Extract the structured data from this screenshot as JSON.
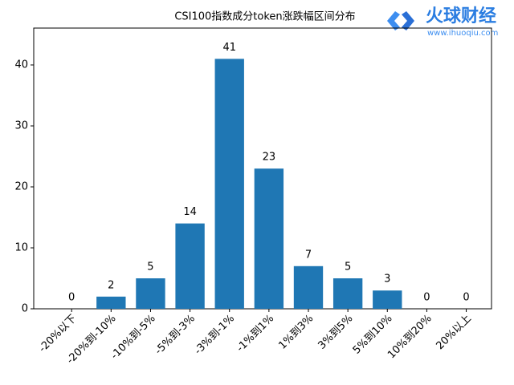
{
  "chart_data": {
    "type": "bar",
    "title": "CSI100指数成分token涨跌幅区间分布",
    "categories": [
      "-20%以下",
      "-20%到-10%",
      "-10%到-5%",
      "-5%到-3%",
      "-3%到-1%",
      "-1%到1%",
      "1%到3%",
      "3%到5%",
      "5%到10%",
      "10%到20%",
      "20%以上"
    ],
    "values": [
      0,
      2,
      5,
      14,
      41,
      23,
      7,
      5,
      3,
      0,
      0
    ],
    "color": "#1f77b4",
    "ylim": [
      0,
      46.05
    ],
    "yticks": [
      0,
      10,
      20,
      30,
      40
    ],
    "grid": false
  },
  "watermark": {
    "brand": "火球财经",
    "url": "www.ihuoqiu.com"
  }
}
